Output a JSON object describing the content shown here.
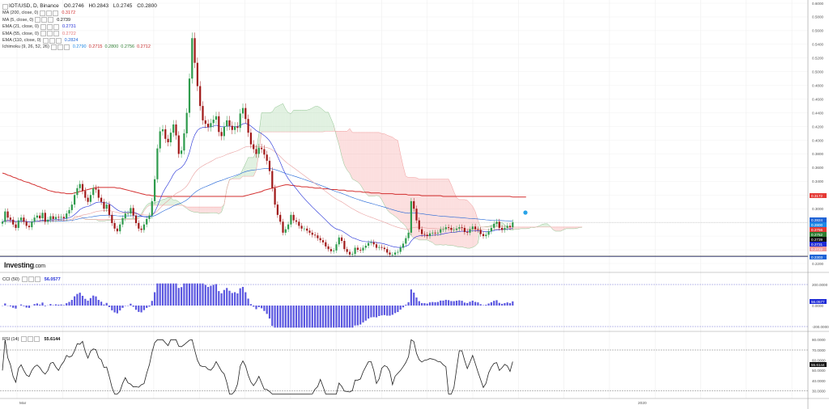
{
  "header": {
    "symbol": "IOT/USD, D, Binance",
    "open_label": "O0.2746",
    "high_label": "H0.2843",
    "low_label": "L0.2745",
    "close_label": "C0.2800"
  },
  "indicators": [
    {
      "name": "MA (200, close, 0)",
      "value": "0.3172",
      "color": "#d32f2f"
    },
    {
      "name": "MA (5, close, 0)",
      "value": "0.2739",
      "color": "#111111"
    },
    {
      "name": "EMA (21, close, 0)",
      "value": "0.2731",
      "color": "#1e2bd6"
    },
    {
      "name": "EMA (55, close, 0)",
      "value": "0.2722",
      "color": "#e57373"
    },
    {
      "name": "EMA (110, close, 0)",
      "value": "0.2824",
      "color": "#1e63d6"
    },
    {
      "name": "Ichimoku (9, 26, 52, 26)",
      "values": [
        "0.2790",
        "0.2715",
        "0.2800",
        "0.2756",
        "0.2712"
      ],
      "colors": [
        "#1e88e5",
        "#c62828",
        "#2e7d32",
        "#2e7d32",
        "#c62828"
      ]
    }
  ],
  "logo": {
    "brand": "Investing",
    "suffix": ".com"
  },
  "cci": {
    "label": "CCI (50)",
    "value": "56.0577",
    "ticks": [
      "200.0000",
      "0.0000",
      "-200.0000"
    ],
    "badge": "56.0577"
  },
  "rsi": {
    "label": "RSI (14)",
    "value": "55.6144",
    "ticks": [
      "80.0000",
      "70.0000",
      "60.0000",
      "50.0000",
      "40.0000",
      "30.0000"
    ],
    "badge": "55.6144"
  },
  "x_axis": {
    "labels": [
      "Mar",
      "2020"
    ]
  },
  "price_axis": {
    "ticks": [
      "0.6000",
      "0.5800",
      "0.5600",
      "0.5400",
      "0.5200",
      "0.5000",
      "0.4800",
      "0.4600",
      "0.4400",
      "0.4200",
      "0.4000",
      "0.3800",
      "0.3600",
      "0.3400",
      "0.3200",
      "0.3000",
      "0.2800",
      "0.2600",
      "0.2400",
      "0.2200"
    ]
  },
  "price_badges": [
    {
      "text": "0.3172",
      "color": "#e53935"
    },
    {
      "text": "0.2824",
      "color": "#1e63d6"
    },
    {
      "text": "0.2800",
      "color": "#1e88e5"
    },
    {
      "text": "0.2756",
      "color": "#e53935"
    },
    {
      "text": "0.2752",
      "color": "#2e7d32"
    },
    {
      "text": "0.2739",
      "color": "#111111"
    },
    {
      "text": "0.2731",
      "color": "#1e2bd6"
    },
    {
      "text": "0.2722",
      "color": "#ef9a9a"
    },
    {
      "text": "0.2303",
      "color": "#1e63d6"
    }
  ],
  "chart_data": {
    "type": "candlestick",
    "ylim": [
      0.22,
      0.6
    ],
    "horizontal_line": 0.2303,
    "close": [
      0.281,
      0.296,
      0.287,
      0.284,
      0.277,
      0.272,
      0.283,
      0.287,
      0.281,
      0.275,
      0.273,
      0.281,
      0.287,
      0.29,
      0.286,
      0.294,
      0.281,
      0.284,
      0.289,
      0.285,
      0.288,
      0.287,
      0.288,
      0.286,
      0.293,
      0.298,
      0.306,
      0.32,
      0.33,
      0.336,
      0.326,
      0.316,
      0.31,
      0.32,
      0.33,
      0.328,
      0.316,
      0.31,
      0.3,
      0.306,
      0.291,
      0.279,
      0.271,
      0.267,
      0.277,
      0.286,
      0.293,
      0.293,
      0.301,
      0.29,
      0.279,
      0.271,
      0.269,
      0.277,
      0.285,
      0.29,
      0.311,
      0.343,
      0.388,
      0.413,
      0.416,
      0.402,
      0.397,
      0.411,
      0.423,
      0.407,
      0.38,
      0.385,
      0.41,
      0.44,
      0.49,
      0.549,
      0.513,
      0.479,
      0.45,
      0.429,
      0.424,
      0.419,
      0.425,
      0.43,
      0.435,
      0.412,
      0.406,
      0.42,
      0.429,
      0.421,
      0.415,
      0.42,
      0.418,
      0.439,
      0.447,
      0.431,
      0.411,
      0.394,
      0.387,
      0.38,
      0.389,
      0.387,
      0.379,
      0.37,
      0.355,
      0.33,
      0.306,
      0.291,
      0.281,
      0.265,
      0.27,
      0.277,
      0.291,
      0.283,
      0.281,
      0.275,
      0.271,
      0.271,
      0.268,
      0.265,
      0.262,
      0.261,
      0.257,
      0.254,
      0.251,
      0.245,
      0.241,
      0.238,
      0.239,
      0.248,
      0.258,
      0.253,
      0.241,
      0.237,
      0.233,
      0.234,
      0.243,
      0.24,
      0.239,
      0.243,
      0.246,
      0.25,
      0.251,
      0.248,
      0.243,
      0.244,
      0.243,
      0.241,
      0.236,
      0.233,
      0.233,
      0.236,
      0.237,
      0.243,
      0.249,
      0.257,
      0.265,
      0.311,
      0.3,
      0.283,
      0.27,
      0.263,
      0.262,
      0.26,
      0.264,
      0.265,
      0.264,
      0.265,
      0.27,
      0.27,
      0.273,
      0.272,
      0.269,
      0.269,
      0.271,
      0.273,
      0.272,
      0.266,
      0.265,
      0.27,
      0.274,
      0.27,
      0.269,
      0.263,
      0.26,
      0.262,
      0.267,
      0.272,
      0.278,
      0.281,
      0.272,
      0.269,
      0.272,
      0.275,
      0.273,
      0.28
    ],
    "ma200": [
      0.352,
      0.351,
      0.349,
      0.348,
      0.346,
      0.345,
      0.343,
      0.342,
      0.34,
      0.339,
      0.338,
      0.336,
      0.335,
      0.333,
      0.332,
      0.33,
      0.329,
      0.327,
      0.326,
      0.325,
      0.324,
      0.324,
      0.323,
      0.323,
      0.322,
      0.322,
      0.322,
      0.323,
      0.324,
      0.325,
      0.326,
      0.327,
      0.328,
      0.329,
      0.33,
      0.331,
      0.331,
      0.331,
      0.331,
      0.331,
      0.331,
      0.331,
      0.331,
      0.33,
      0.33,
      0.329,
      0.328,
      0.327,
      0.326,
      0.325,
      0.324,
      0.323,
      0.322,
      0.321,
      0.32,
      0.32,
      0.319,
      0.319,
      0.318,
      0.318,
      0.318,
      0.318,
      0.318,
      0.318,
      0.318,
      0.318,
      0.318,
      0.318,
      0.318,
      0.318,
      0.318,
      0.318,
      0.318,
      0.318,
      0.318,
      0.318,
      0.318,
      0.318,
      0.318,
      0.318,
      0.318,
      0.318,
      0.318,
      0.318,
      0.318,
      0.318,
      0.318,
      0.318,
      0.318,
      0.318,
      0.318,
      0.319,
      0.32,
      0.321,
      0.322,
      0.323,
      0.324,
      0.325,
      0.327,
      0.328,
      0.329,
      0.33,
      0.331,
      0.332,
      0.333,
      0.334,
      0.335,
      0.335,
      0.334,
      0.334,
      0.333,
      0.333,
      0.332,
      0.332,
      0.332,
      0.331,
      0.331,
      0.33,
      0.33,
      0.33,
      0.329,
      0.329,
      0.329,
      0.328,
      0.328,
      0.328,
      0.327,
      0.327,
      0.327,
      0.326,
      0.326,
      0.326,
      0.325,
      0.325,
      0.325,
      0.324,
      0.324,
      0.324,
      0.323,
      0.323,
      0.323,
      0.323,
      0.322,
      0.322,
      0.322,
      0.322,
      0.322,
      0.321,
      0.321,
      0.321,
      0.321,
      0.321,
      0.32,
      0.32,
      0.32,
      0.32,
      0.32,
      0.319,
      0.319,
      0.319,
      0.319,
      0.319,
      0.319,
      0.319,
      0.319,
      0.318,
      0.318,
      0.318,
      0.318,
      0.318,
      0.318,
      0.318,
      0.318,
      0.318,
      0.318,
      0.318,
      0.318,
      0.318,
      0.318,
      0.318,
      0.318,
      0.318,
      0.318,
      0.318,
      0.318,
      0.318,
      0.318,
      0.318,
      0.318,
      0.318,
      0.318,
      0.317,
      0.317,
      0.317,
      0.317,
      0.317,
      0.317
    ]
  }
}
